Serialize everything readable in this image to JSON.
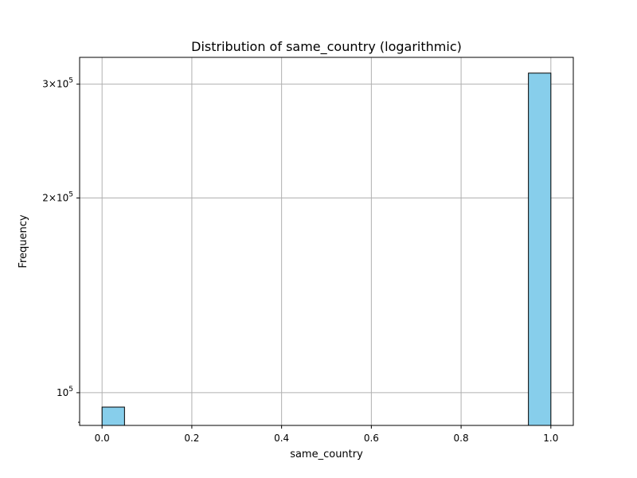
{
  "chart_data": {
    "type": "bar",
    "title": "Distribution of same_country (logarithmic)",
    "xlabel": "same_country",
    "ylabel": "Frequency",
    "y_scale": "log",
    "grid": true,
    "xlim": [
      -0.05,
      1.05
    ],
    "ylim": [
      89000,
      330000
    ],
    "x_ticks": [
      0.0,
      0.2,
      0.4,
      0.6,
      0.8,
      1.0
    ],
    "x_tick_labels": [
      "0.0",
      "0.2",
      "0.4",
      "0.6",
      "0.8",
      "1.0"
    ],
    "y_ticks": [
      {
        "value": 100000,
        "mantissa": "",
        "exp": "5"
      },
      {
        "value": 200000,
        "mantissa": "2",
        "exp": "5"
      },
      {
        "value": 300000,
        "mantissa": "3",
        "exp": "5"
      }
    ],
    "bins": [
      {
        "x_start": 0.0,
        "x_end": 0.05,
        "value": 95000
      },
      {
        "x_start": 0.95,
        "x_end": 1.0,
        "value": 312000
      }
    ],
    "bar_color": "#87CEEB",
    "edge_color": "#000000",
    "grid_color": "#b0b0b0"
  }
}
